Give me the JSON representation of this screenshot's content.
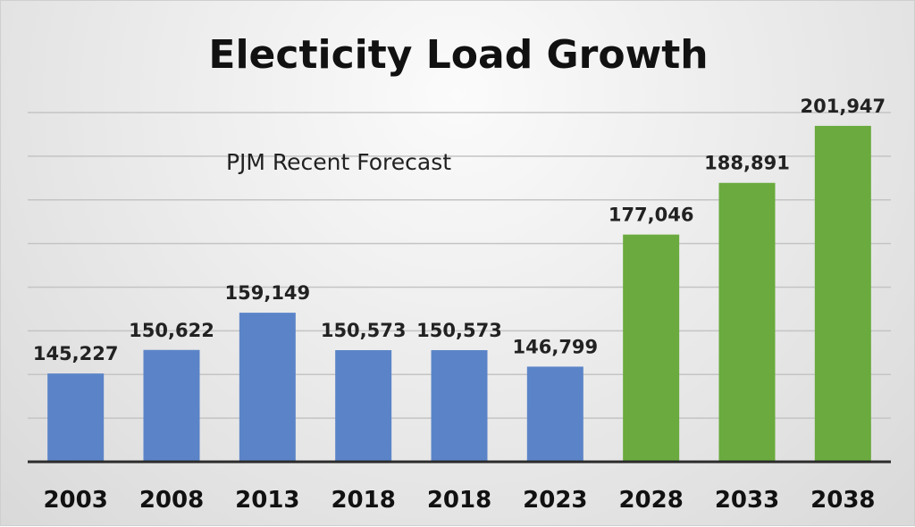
{
  "chart_data": {
    "type": "bar",
    "title": "Electicity Load Growth",
    "subtitle": "PJM Recent Forecast",
    "categories": [
      "2003",
      "2008",
      "2013",
      "2018",
      "2018",
      "2023",
      "2028",
      "2033",
      "2038"
    ],
    "values": [
      145227,
      150622,
      159149,
      150573,
      150573,
      146799,
      177046,
      188891,
      201947
    ],
    "value_labels": [
      "145,227",
      "150,622",
      "159,149",
      "150,573",
      "150,573",
      "146,799",
      "177,046",
      "188,891",
      "201,947"
    ],
    "series_kind": [
      "historical",
      "historical",
      "historical",
      "historical",
      "historical",
      "historical",
      "forecast",
      "forecast",
      "forecast"
    ],
    "colors": {
      "historical": "#5b84c8",
      "forecast": "#6aaa3e",
      "grid": "#c4c4c4",
      "axis": "#2b2b2b"
    },
    "ylim": [
      125000,
      205000
    ],
    "grid": true,
    "xlabel": "",
    "ylabel": ""
  }
}
